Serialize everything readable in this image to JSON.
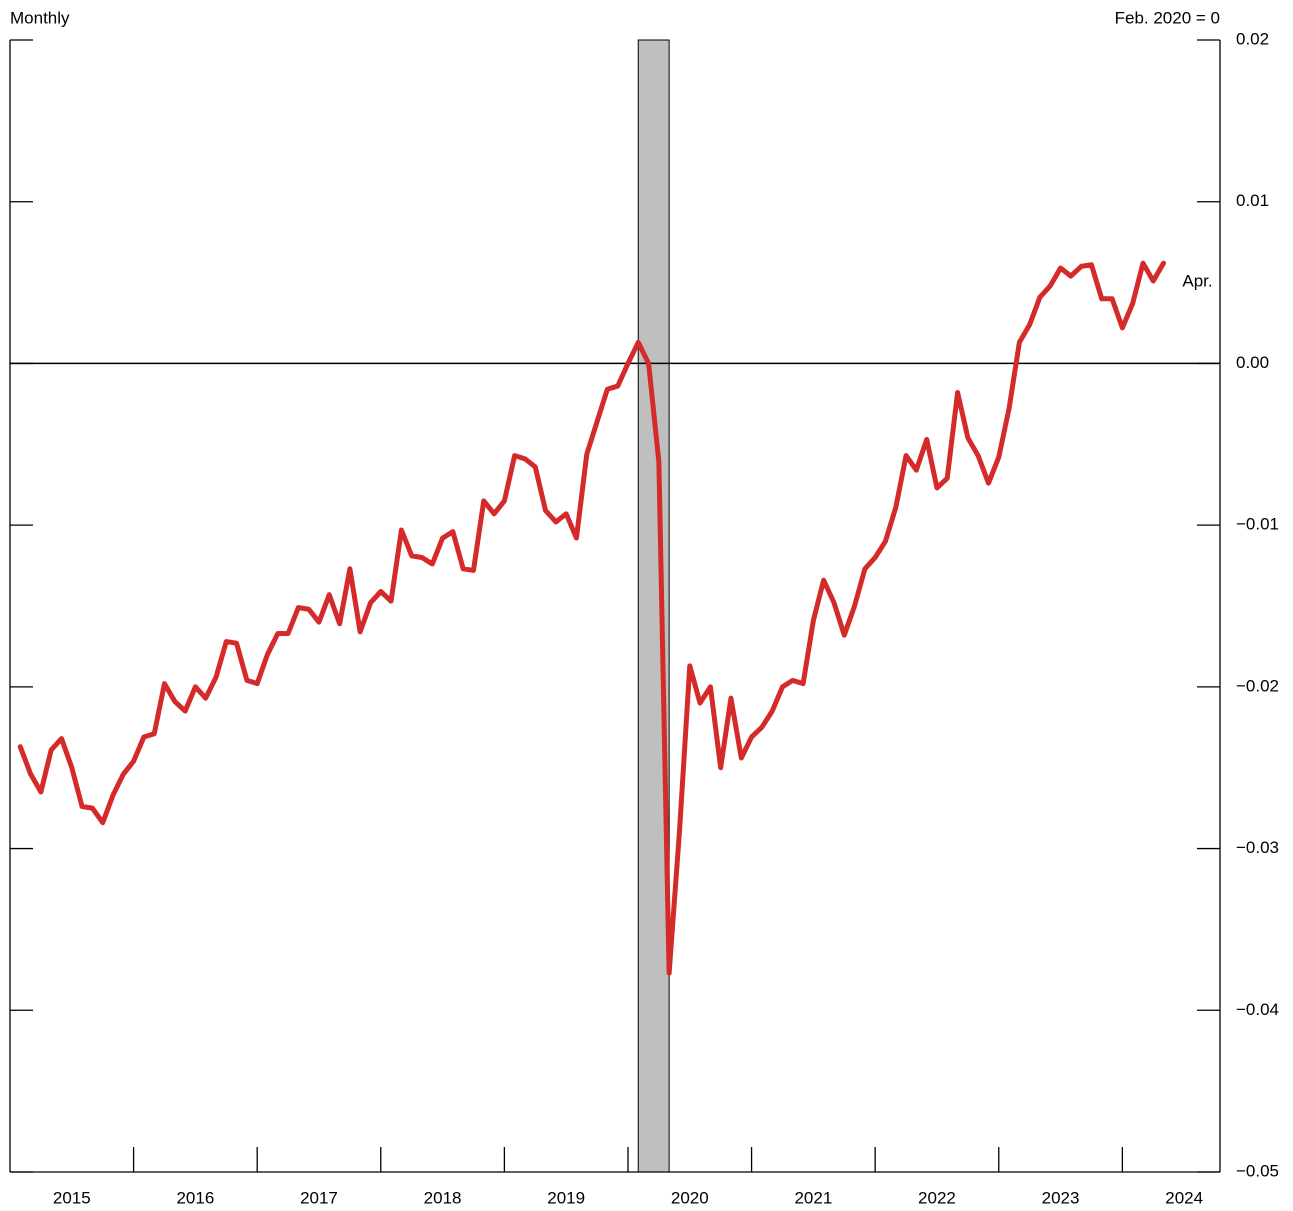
{
  "chart_data": {
    "type": "line",
    "left_title": "Monthly",
    "right_title": "Feb. 2020 = 0",
    "end_label": "Apr.",
    "x": [
      2015.083,
      2015.167,
      2015.25,
      2015.333,
      2015.417,
      2015.5,
      2015.583,
      2015.667,
      2015.75,
      2015.833,
      2015.917,
      2016,
      2016.083,
      2016.167,
      2016.25,
      2016.333,
      2016.417,
      2016.5,
      2016.583,
      2016.667,
      2016.75,
      2016.833,
      2016.917,
      2017,
      2017.083,
      2017.167,
      2017.25,
      2017.333,
      2017.417,
      2017.5,
      2017.583,
      2017.667,
      2017.75,
      2017.833,
      2017.917,
      2018,
      2018.083,
      2018.167,
      2018.25,
      2018.333,
      2018.417,
      2018.5,
      2018.583,
      2018.667,
      2018.75,
      2018.833,
      2018.917,
      2019,
      2019.083,
      2019.167,
      2019.25,
      2019.333,
      2019.417,
      2019.5,
      2019.583,
      2019.667,
      2019.75,
      2019.833,
      2019.917,
      2020,
      2020.083,
      2020.167,
      2020.25,
      2020.333,
      2020.417,
      2020.5,
      2020.583,
      2020.667,
      2020.75,
      2020.833,
      2020.917,
      2021,
      2021.083,
      2021.167,
      2021.25,
      2021.333,
      2021.417,
      2021.5,
      2021.583,
      2021.667,
      2021.75,
      2021.833,
      2021.917,
      2022,
      2022.083,
      2022.167,
      2022.25,
      2022.333,
      2022.417,
      2022.5,
      2022.583,
      2022.667,
      2022.75,
      2022.833,
      2022.917,
      2023,
      2023.083,
      2023.167,
      2023.25,
      2023.333,
      2023.417,
      2023.5,
      2023.583,
      2023.667,
      2023.75,
      2023.833,
      2023.917,
      2024,
      2024.083,
      2024.167,
      2024.25,
      2024.333
    ],
    "values": [
      -0.0237,
      -0.0254,
      -0.0265,
      -0.0239,
      -0.0232,
      -0.025,
      -0.0274,
      -0.0275,
      -0.0284,
      -0.0267,
      -0.0254,
      -0.0246,
      -0.0231,
      -0.0229,
      -0.0198,
      -0.0209,
      -0.0215,
      -0.02,
      -0.0207,
      -0.0194,
      -0.0172,
      -0.0173,
      -0.0196,
      -0.0198,
      -0.018,
      -0.0167,
      -0.0167,
      -0.0151,
      -0.0152,
      -0.016,
      -0.0143,
      -0.0161,
      -0.0127,
      -0.0166,
      -0.0148,
      -0.0141,
      -0.0147,
      -0.0103,
      -0.0119,
      -0.012,
      -0.0124,
      -0.0108,
      -0.0104,
      -0.0127,
      -0.0128,
      -0.0085,
      -0.0093,
      -0.0085,
      -0.0057,
      -0.0059,
      -0.0064,
      -0.0091,
      -0.0098,
      -0.0093,
      -0.0108,
      -0.0056,
      -0.0036,
      -0.0016,
      -0.0014,
      0,
      0.0013,
      0,
      -0.0061,
      -0.0377,
      -0.0289,
      -0.0187,
      -0.021,
      -0.02,
      -0.025,
      -0.0207,
      -0.0244,
      -0.0231,
      -0.0225,
      -0.0215,
      -0.02,
      -0.0196,
      -0.0198,
      -0.0159,
      -0.0134,
      -0.0148,
      -0.0168,
      -0.015,
      -0.0127,
      -0.012,
      -0.011,
      -0.0089,
      -0.0057,
      -0.0066,
      -0.0047,
      -0.0077,
      -0.0071,
      -0.0018,
      -0.0046,
      -0.0057,
      -0.0074,
      -0.0058,
      -0.0028,
      0.0013,
      0.0024,
      0.0041,
      0.0048,
      0.0059,
      0.0054,
      0.006,
      0.0061,
      0.004,
      0.004,
      0.0022,
      0.0037,
      0.0062,
      0.0051,
      0.0062
    ],
    "color": "#d42a2a",
    "shaded_ranges": [
      [
        2020.083,
        2020.333
      ]
    ],
    "shade_color": "#bfbfbf",
    "xlim": [
      2015,
      2024.79
    ],
    "xticks": [
      {
        "value": 2015.5,
        "label": "2015"
      },
      {
        "value": 2016.5,
        "label": "2016"
      },
      {
        "value": 2017.5,
        "label": "2017"
      },
      {
        "value": 2018.5,
        "label": "2018"
      },
      {
        "value": 2019.5,
        "label": "2019"
      },
      {
        "value": 2020.5,
        "label": "2020"
      },
      {
        "value": 2021.5,
        "label": "2021"
      },
      {
        "value": 2022.5,
        "label": "2022"
      },
      {
        "value": 2023.5,
        "label": "2023"
      },
      {
        "value": 2024.5,
        "label": "2024"
      }
    ],
    "year_boundaries": [
      2016,
      2017,
      2018,
      2019,
      2020,
      2021,
      2022,
      2023,
      2024
    ],
    "ylim": [
      -0.05,
      0.02
    ],
    "yticks": [
      0.02,
      0.01,
      {
        "value": 0,
        "label": "0.00"
      },
      {
        "value": -0.01,
        "label": "−0.01"
      },
      {
        "value": -0.02,
        "label": "−0.02"
      },
      {
        "value": -0.03,
        "label": "−0.03"
      },
      {
        "value": -0.04,
        "label": "−0.04"
      },
      {
        "value": -0.05,
        "label": "−0.05"
      }
    ],
    "zero_line": 0
  }
}
